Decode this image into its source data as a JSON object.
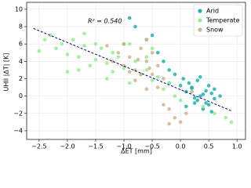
{
  "chart_data": {
    "type": "scatter",
    "xlabel": "ΔET [mm]",
    "ylabel": "UHII |ΔT| [K]",
    "annotation": "R² = 0.540",
    "xlim": [
      -2.72,
      1.15
    ],
    "ylim": [
      -5,
      10.8
    ],
    "xticks": [
      {
        "value": -2.5,
        "label": "−2.5"
      },
      {
        "value": -2.0,
        "label": "−2.0"
      },
      {
        "value": -1.5,
        "label": "−1.5"
      },
      {
        "value": -1.0,
        "label": "−1.0"
      },
      {
        "value": -0.5,
        "label": "−0.5"
      },
      {
        "value": 0.0,
        "label": "0.0"
      },
      {
        "value": 0.5,
        "label": "0.5"
      },
      {
        "value": 1.0,
        "label": "1.0"
      }
    ],
    "yticks": [
      {
        "value": -4,
        "label": "−4"
      },
      {
        "value": -2,
        "label": "−2"
      },
      0,
      2,
      4,
      6,
      8,
      10
    ],
    "grid": true,
    "legend": "upper right",
    "fit": {
      "color": "#00008b",
      "x": [
        -2.6,
        0.9
      ],
      "y": [
        7.8,
        -1.7
      ]
    },
    "series": [
      {
        "name": "Arid",
        "color": "#20b2aa",
        "x": [
          0.1,
          0.2,
          0.3,
          0.4,
          0.5,
          0.6,
          0.15,
          0.25,
          0.35,
          0.45,
          0.55,
          0.05,
          0.0,
          -0.1,
          0.3,
          0.4,
          0.2,
          0.5,
          0.6,
          0.7,
          -0.2,
          -0.4,
          -0.6,
          -0.8,
          -0.9,
          -0.3,
          -0.5,
          -0.7,
          -1.0,
          -0.2,
          0.1,
          0.35,
          0.45,
          0.25,
          0.55
        ],
        "y": [
          0.5,
          1.0,
          -0.5,
          0.2,
          -1.0,
          0.8,
          1.5,
          -0.2,
          0.0,
          -0.8,
          0.3,
          2.0,
          1.2,
          2.5,
          1.8,
          -1.5,
          0.9,
          1.2,
          -0.3,
          0.0,
          3.0,
          5.0,
          6.5,
          8.0,
          9.0,
          4.0,
          7.0,
          2.5,
          6.0,
          1.5,
          -1.2,
          2.2,
          0.6,
          -0.8,
          -1.8
        ]
      },
      {
        "name": "Temperate",
        "color": "#90ee90",
        "x": [
          -2.5,
          -2.4,
          -2.3,
          -2.2,
          -2.1,
          -2.0,
          -1.9,
          -1.8,
          -1.7,
          -1.6,
          -1.5,
          -1.4,
          -1.3,
          -1.2,
          -1.1,
          -1.0,
          -0.9,
          -0.8,
          -0.7,
          -0.6,
          -0.5,
          -0.4,
          -0.3,
          -0.2,
          -0.1,
          0.0,
          0.2,
          0.4,
          0.6,
          0.8,
          -2.0,
          -1.8,
          -1.5,
          -1.2,
          -0.9,
          -0.6,
          -1.7,
          -1.3,
          -0.5,
          0.9
        ],
        "y": [
          5.2,
          6.5,
          7.0,
          5.5,
          6.0,
          4.8,
          6.5,
          4.5,
          5.8,
          3.5,
          4.2,
          5.5,
          3.8,
          2.8,
          4.5,
          3.2,
          1.5,
          4.0,
          2.5,
          3.0,
          1.8,
          2.2,
          0.8,
          1.5,
          0.0,
          -0.5,
          0.5,
          -1.2,
          -2.0,
          -2.5,
          2.8,
          3.0,
          6.0,
          5.0,
          6.0,
          4.5,
          7.2,
          2.0,
          5.5,
          -3.0
        ]
      },
      {
        "name": "Snow",
        "color": "#d2b48c",
        "x": [
          -1.2,
          -1.1,
          -1.0,
          -0.9,
          -0.8,
          -0.7,
          -0.6,
          -0.5,
          -0.4,
          -0.3,
          -1.0,
          -0.8,
          -0.6,
          -0.5,
          -0.7,
          -0.9,
          -0.4,
          -0.2,
          -0.1,
          0.0,
          0.1,
          -0.3,
          -0.2,
          0.2,
          -0.6,
          -1.3,
          -0.75,
          -0.55
        ],
        "y": [
          4.0,
          5.0,
          3.5,
          4.5,
          3.0,
          5.5,
          4.0,
          2.5,
          3.5,
          2.0,
          6.0,
          1.8,
          6.5,
          5.0,
          2.5,
          2.8,
          1.0,
          -1.5,
          -2.5,
          -3.0,
          -2.0,
          -1.0,
          -3.2,
          0.5,
          0.8,
          5.8,
          4.2,
          3.2
        ]
      }
    ]
  }
}
